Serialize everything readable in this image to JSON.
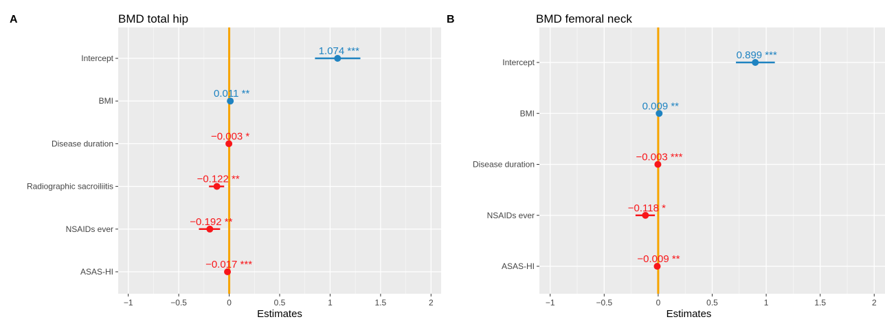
{
  "colors": {
    "positive": "#1f83c1",
    "negative": "#f8161a",
    "reference_line": "#f6a400",
    "panel_background": "#ebebeb",
    "grid": "#ffffff"
  },
  "chart_data": [
    {
      "type": "forest",
      "panel_letter": "A",
      "title": "BMD total hip",
      "xlabel": "Estimates",
      "xlim": [
        -1.1,
        2.1
      ],
      "xticks": [
        -1,
        -0.5,
        0,
        0.5,
        1,
        1.5,
        2
      ],
      "xtick_labels": [
        "−1",
        "−0.5",
        "0",
        "0.5",
        "1",
        "1.5",
        "2"
      ],
      "reference_line": 0,
      "grid": true,
      "categories": [
        "Intercept",
        "BMI",
        "Disease duration",
        "Radiographic sacroiliitis",
        "NSAIDs ever",
        "ASAS-HI"
      ],
      "estimates": [
        1.074,
        0.011,
        -0.003,
        -0.122,
        -0.192,
        -0.017
      ],
      "ci_lower": [
        0.85,
        0.0,
        -0.01,
        -0.2,
        -0.3,
        -0.03
      ],
      "ci_upper": [
        1.3,
        0.02,
        0.0,
        -0.05,
        -0.09,
        0.0
      ],
      "labels": [
        "1.074 ***",
        "0.011 **",
        "−0.003 *",
        "−0.122 **",
        "−0.192 **",
        "−0.017 ***"
      ]
    },
    {
      "type": "forest",
      "panel_letter": "B",
      "title": "BMD femoral neck",
      "xlabel": "Estimates",
      "xlim": [
        -1.1,
        2.1
      ],
      "xticks": [
        -1,
        -0.5,
        0,
        0.5,
        1,
        1.5,
        2
      ],
      "xtick_labels": [
        "−1",
        "−0.5",
        "0",
        "0.5",
        "1",
        "1.5",
        "2"
      ],
      "reference_line": 0,
      "grid": true,
      "categories": [
        "Intercept",
        "BMI",
        "Disease duration",
        "NSAIDs ever",
        "ASAS-HI"
      ],
      "estimates": [
        0.899,
        0.009,
        -0.003,
        -0.118,
        -0.009
      ],
      "ci_lower": [
        0.72,
        0.0,
        -0.01,
        -0.21,
        -0.02
      ],
      "ci_upper": [
        1.08,
        0.02,
        0.0,
        -0.03,
        0.0
      ],
      "labels": [
        "0.899 ***",
        "0.009 **",
        "−0.003 ***",
        "−0.118 *",
        "−0.009 **"
      ]
    }
  ]
}
